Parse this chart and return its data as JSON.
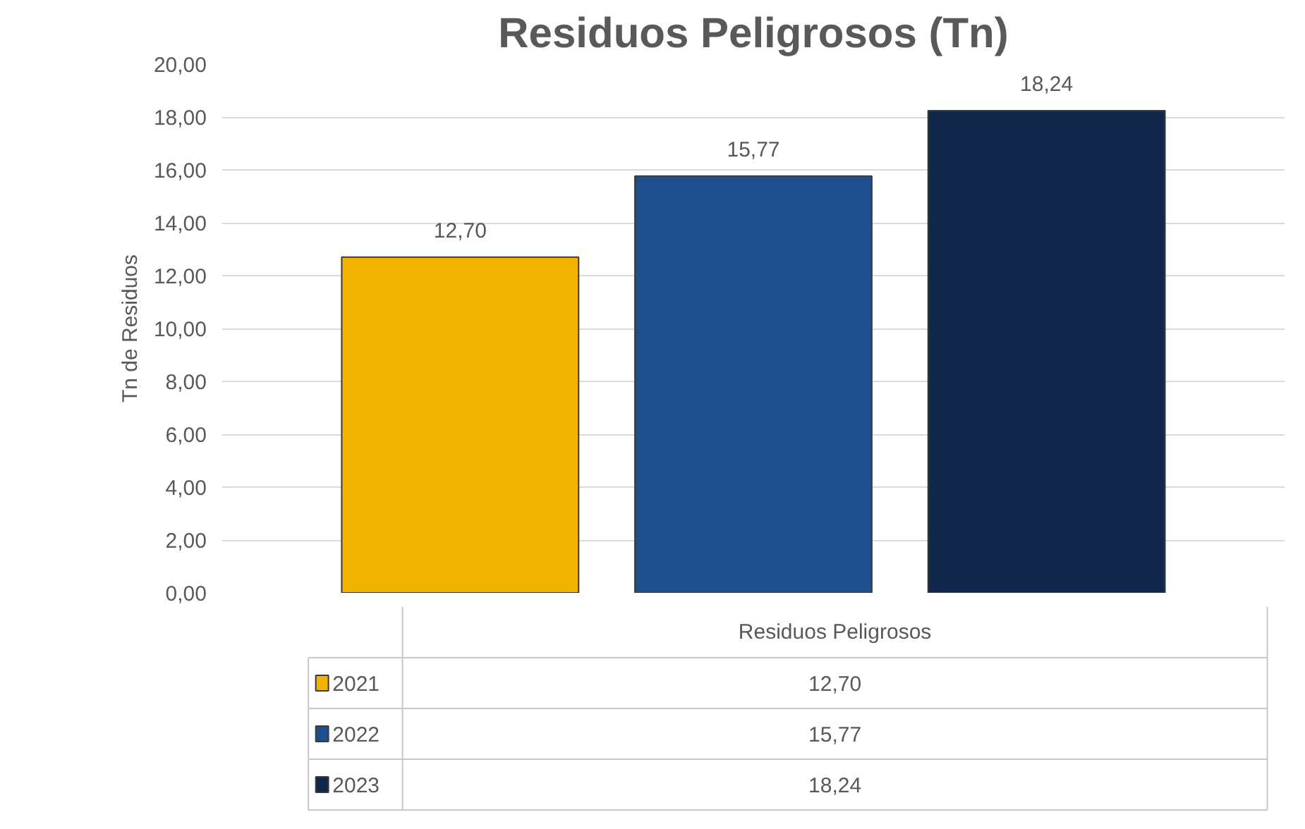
{
  "chart_data": {
    "type": "bar",
    "title": "Residuos Peligrosos (Tn)",
    "ylabel": "Tn de Residuos",
    "categories": [
      "Residuos Peligrosos"
    ],
    "series": [
      {
        "name": "2021",
        "color": "#f0b400",
        "values": [
          12.7
        ],
        "value_labels": [
          "12,70"
        ]
      },
      {
        "name": "2022",
        "color": "#1f4e8c",
        "values": [
          15.77
        ],
        "value_labels": [
          "15,77"
        ]
      },
      {
        "name": "2023",
        "color": "#10264a",
        "values": [
          18.24
        ],
        "value_labels": [
          "18,24"
        ]
      }
    ],
    "ylim": [
      0,
      20
    ],
    "yticks": [
      {
        "value": 0,
        "label": "0,00"
      },
      {
        "value": 2,
        "label": "2,00"
      },
      {
        "value": 4,
        "label": "4,00"
      },
      {
        "value": 6,
        "label": "6,00"
      },
      {
        "value": 8,
        "label": "8,00"
      },
      {
        "value": 10,
        "label": "10,00"
      },
      {
        "value": 12,
        "label": "12,00"
      },
      {
        "value": 14,
        "label": "14,00"
      },
      {
        "value": 16,
        "label": "16,00"
      },
      {
        "value": 18,
        "label": "18,00"
      },
      {
        "value": 20,
        "label": "20,00"
      }
    ],
    "grid": "y",
    "legend": "bottom"
  }
}
